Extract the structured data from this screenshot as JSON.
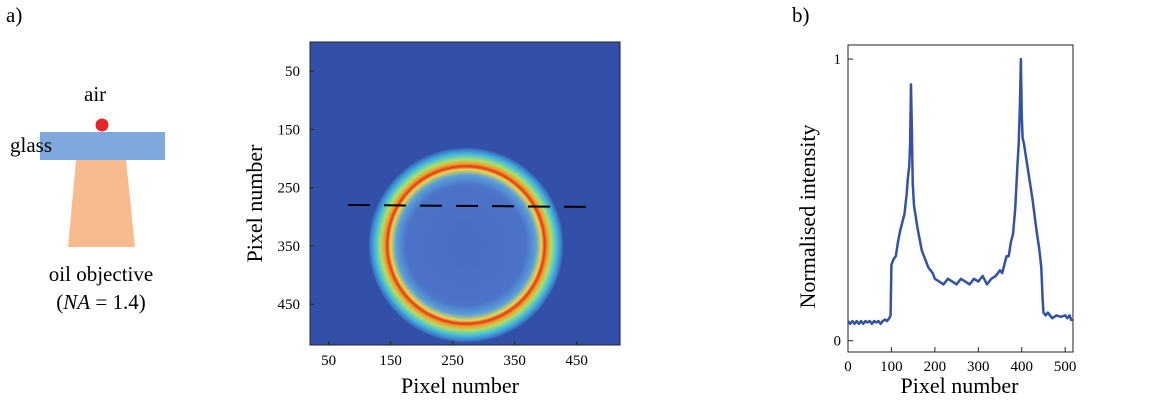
{
  "panel_labels": [
    "a)",
    "b)"
  ],
  "diagram": {
    "air": "air",
    "glass": "glass",
    "objective": "oil objective",
    "na": [
      "(",
      "NA",
      " = 1.4)"
    ]
  },
  "chart_data": [
    {
      "type": "image",
      "xlabel": "Pixel number",
      "ylabel": "Pixel number",
      "xlim": [
        20,
        520
      ],
      "ylim": [
        520,
        0
      ],
      "xticks": [
        50,
        150,
        250,
        350,
        450
      ],
      "yticks": [
        50,
        150,
        250,
        350,
        450
      ]
    },
    {
      "type": "line",
      "xlabel": "Pixel number",
      "ylabel": "Normalised intensity",
      "xlim": [
        0,
        518
      ],
      "ylim": [
        -0.04,
        1.05
      ],
      "xticks": [
        0,
        100,
        200,
        300,
        400,
        500
      ],
      "yticks": [
        0,
        1
      ],
      "color": "#3352a3",
      "x": [
        0,
        5,
        10,
        15,
        20,
        25,
        30,
        35,
        40,
        45,
        50,
        55,
        60,
        65,
        70,
        75,
        80,
        85,
        90,
        95,
        98,
        100,
        105,
        110,
        115,
        120,
        125,
        130,
        135,
        138,
        141,
        143,
        145,
        147,
        149,
        152,
        155,
        160,
        165,
        170,
        175,
        180,
        185,
        190,
        195,
        200,
        210,
        220,
        230,
        240,
        250,
        260,
        270,
        280,
        290,
        300,
        310,
        320,
        330,
        340,
        350,
        355,
        360,
        365,
        370,
        375,
        380,
        385,
        390,
        393,
        396,
        398,
        400,
        402,
        405,
        410,
        415,
        420,
        425,
        430,
        435,
        440,
        445,
        448,
        450,
        455,
        460,
        470,
        480,
        490,
        500,
        505,
        510,
        515
      ],
      "values": [
        0.07,
        0.06,
        0.07,
        0.06,
        0.07,
        0.06,
        0.07,
        0.06,
        0.07,
        0.065,
        0.07,
        0.06,
        0.07,
        0.065,
        0.07,
        0.06,
        0.07,
        0.075,
        0.07,
        0.08,
        0.09,
        0.27,
        0.29,
        0.3,
        0.35,
        0.39,
        0.42,
        0.45,
        0.52,
        0.58,
        0.62,
        0.7,
        0.91,
        0.75,
        0.56,
        0.48,
        0.45,
        0.4,
        0.36,
        0.32,
        0.3,
        0.28,
        0.26,
        0.25,
        0.24,
        0.22,
        0.21,
        0.2,
        0.22,
        0.21,
        0.2,
        0.22,
        0.21,
        0.2,
        0.22,
        0.21,
        0.23,
        0.2,
        0.22,
        0.23,
        0.25,
        0.24,
        0.27,
        0.3,
        0.3,
        0.35,
        0.38,
        0.47,
        0.62,
        0.7,
        0.85,
        1,
        0.8,
        0.72,
        0.7,
        0.65,
        0.6,
        0.55,
        0.5,
        0.44,
        0.38,
        0.33,
        0.26,
        0.15,
        0.1,
        0.09,
        0.1,
        0.08,
        0.09,
        0.085,
        0.09,
        0.08,
        0.09,
        0.07
      ]
    }
  ]
}
